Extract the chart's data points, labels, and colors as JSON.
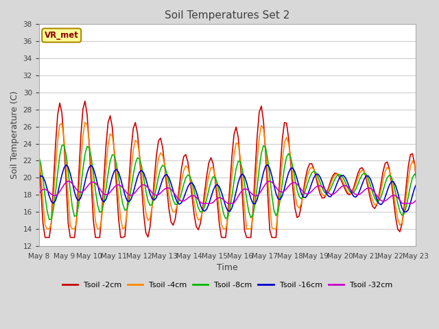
{
  "title": "Soil Temperatures Set 2",
  "xlabel": "Time",
  "ylabel": "Soil Temperature (C)",
  "ylim": [
    12,
    38
  ],
  "yticks": [
    12,
    14,
    16,
    18,
    20,
    22,
    24,
    26,
    28,
    30,
    32,
    34,
    36,
    38
  ],
  "legend_label": "VR_met",
  "series_labels": [
    "Tsoil -2cm",
    "Tsoil -4cm",
    "Tsoil -8cm",
    "Tsoil -16cm",
    "Tsoil -32cm"
  ],
  "series_colors": [
    "#cc0000",
    "#ff8800",
    "#00bb00",
    "#0000cc",
    "#cc00cc"
  ],
  "series_widths": [
    1.2,
    1.2,
    1.2,
    1.2,
    1.2
  ],
  "background_color": "#d8d8d8",
  "plot_background": "#ffffff",
  "grid_color": "#cccccc",
  "title_color": "#404040",
  "axis_label_color": "#404040",
  "tick_color": "#404040"
}
